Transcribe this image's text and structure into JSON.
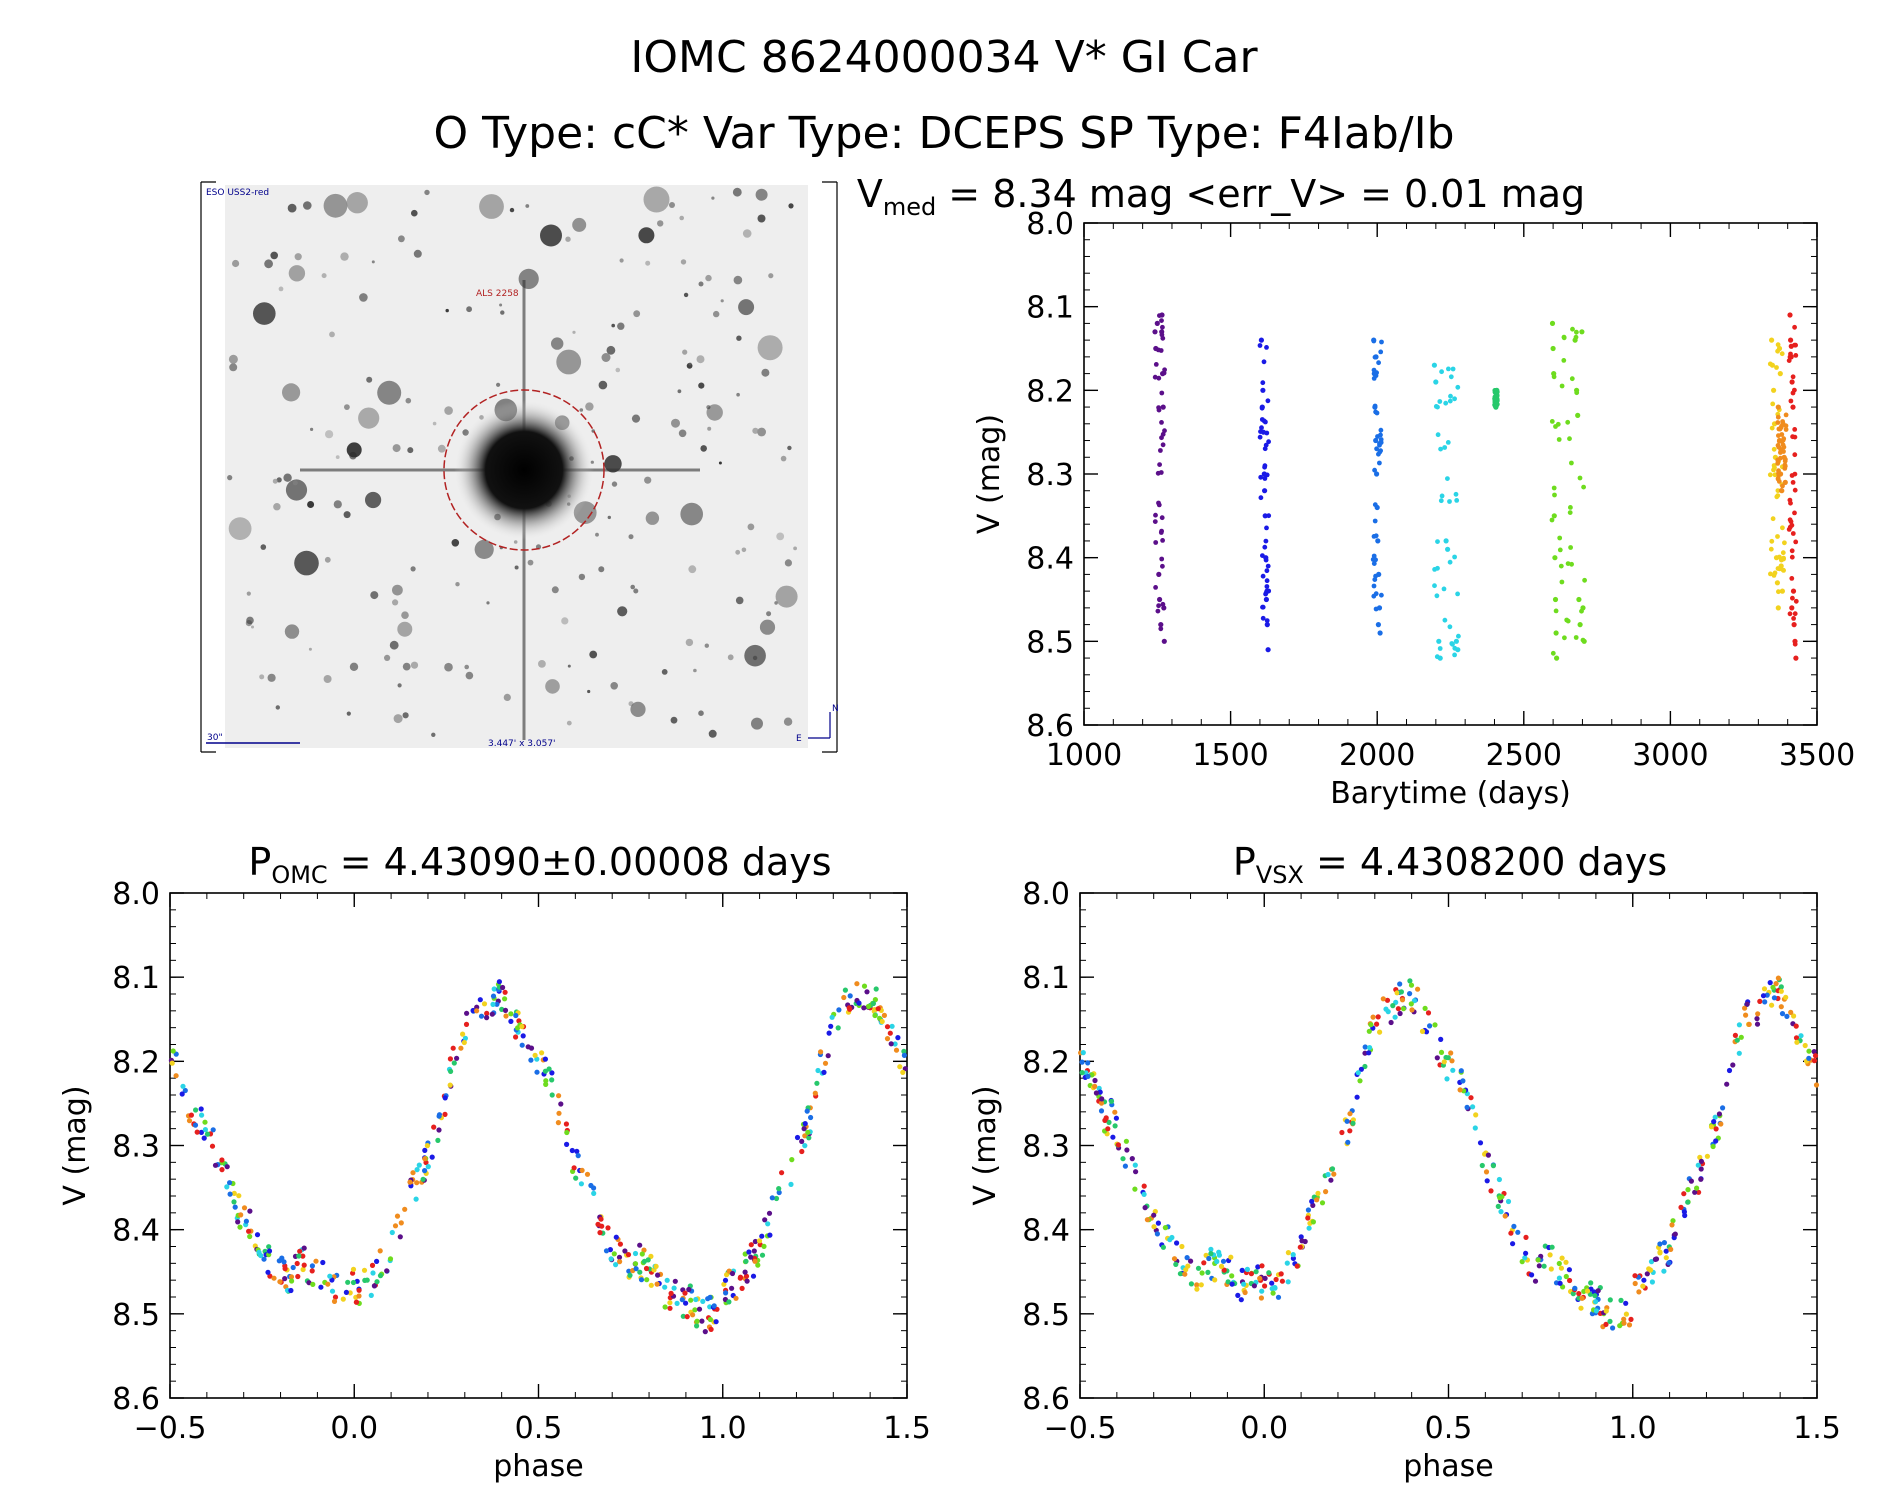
{
  "header": {
    "line1": "IOMC 8624000034   V* GI Car",
    "line2": "O Type: cC*  Var Type: DCEPS  SP Type: F4Iab/Ib"
  },
  "thumbnail": {
    "survey_label": "ESO USS2-red",
    "target_label": "ALS 2258",
    "scale_label": "30\"",
    "size_label": "3.447' x 3.057'",
    "north_label": "N",
    "east_label": "E"
  },
  "panels": {
    "lightcurve": {
      "title_prefix": "V",
      "title_sub": "med",
      "title_rest": " = 8.34 mag <err_V> = 0.01 mag"
    },
    "phase_omc": {
      "title_prefix": "P",
      "title_sub": "OMC",
      "title_rest": " = 4.43090±0.00008 days"
    },
    "phase_vsx": {
      "title_prefix": "P",
      "title_sub": "VSX",
      "title_rest": " = 4.4308200 days"
    }
  },
  "chart_data": [
    {
      "type": "scatter",
      "title": "Vmed = 8.34 mag <err_V> = 0.01 mag",
      "xlabel": "Barytime (days)",
      "ylabel": "V (mag)",
      "xlim": [
        1000,
        3500
      ],
      "ylim": [
        8.0,
        8.6
      ],
      "y_inverted": true,
      "xticks": [
        "1000",
        "1500",
        "2000",
        "2500",
        "3000",
        "3500"
      ],
      "yticks": [
        "8.0",
        "8.1",
        "8.2",
        "8.3",
        "8.4",
        "8.5",
        "8.6"
      ],
      "grid": false,
      "legend": "none",
      "groups": [
        {
          "color": "#5b0f8a",
          "x_range": [
            1240,
            1275
          ],
          "points": [
            [
              1242,
              8.13
            ],
            [
              1245,
              8.15
            ],
            [
              1250,
              8.12
            ],
            [
              1255,
              8.42
            ],
            [
              1258,
              8.45
            ],
            [
              1262,
              8.48
            ],
            [
              1265,
              8.13
            ],
            [
              1268,
              8.18
            ],
            [
              1270,
              8.22
            ],
            [
              1272,
              8.46
            ],
            [
              1274,
              8.5
            ],
            [
              1266,
              8.11
            ]
          ]
        },
        {
          "color": "#1a1ae6",
          "x_range": [
            1600,
            1630
          ],
          "points": [
            [
              1605,
              8.14
            ],
            [
              1610,
              8.2
            ],
            [
              1612,
              8.25
            ],
            [
              1615,
              8.3
            ],
            [
              1618,
              8.35
            ],
            [
              1620,
              8.4
            ],
            [
              1622,
              8.45
            ],
            [
              1625,
              8.48
            ],
            [
              1628,
              8.51
            ],
            [
              1608,
              8.22
            ],
            [
              1616,
              8.32
            ],
            [
              1624,
              8.44
            ]
          ]
        },
        {
          "color": "#1a6ee6",
          "x_range": [
            1985,
            2015
          ],
          "points": [
            [
              1988,
              8.14
            ],
            [
              1990,
              8.18
            ],
            [
              1992,
              8.22
            ],
            [
              1995,
              8.26
            ],
            [
              1998,
              8.3
            ],
            [
              2000,
              8.34
            ],
            [
              2002,
              8.38
            ],
            [
              2005,
              8.42
            ],
            [
              2008,
              8.46
            ],
            [
              2010,
              8.49
            ],
            [
              1996,
              8.16
            ],
            [
              2004,
              8.48
            ]
          ]
        },
        {
          "color": "#2ad4e6",
          "x_range": [
            2190,
            2280
          ],
          "points": [
            [
              2195,
              8.17
            ],
            [
              2200,
              8.19
            ],
            [
              2210,
              8.5
            ],
            [
              2215,
              8.52
            ],
            [
              2235,
              8.38
            ],
            [
              2240,
              8.39
            ],
            [
              2270,
              8.5
            ],
            [
              2275,
              8.51
            ]
          ]
        },
        {
          "color": "#27c86b",
          "x_range": [
            2400,
            2410
          ],
          "points": [
            [
              2402,
              8.21
            ],
            [
              2405,
              8.22
            ],
            [
              2408,
              8.2
            ]
          ]
        },
        {
          "color": "#6edc1e",
          "x_range": [
            2595,
            2710
          ],
          "points": [
            [
              2598,
              8.12
            ],
            [
              2600,
              8.15
            ],
            [
              2602,
              8.18
            ],
            [
              2604,
              8.35
            ],
            [
              2606,
              8.4
            ],
            [
              2608,
              8.45
            ],
            [
              2610,
              8.49
            ],
            [
              2612,
              8.52
            ],
            [
              2675,
              8.14
            ],
            [
              2680,
              8.2
            ],
            [
              2684,
              8.23
            ],
            [
              2688,
              8.45
            ],
            [
              2692,
              8.48
            ],
            [
              2698,
              8.13
            ],
            [
              2702,
              8.46
            ],
            [
              2706,
              8.5
            ]
          ]
        },
        {
          "color": "#f2d21e",
          "x_range": [
            3340,
            3390
          ],
          "points": [
            [
              3345,
              8.14
            ],
            [
              3348,
              8.17
            ],
            [
              3352,
              8.2
            ],
            [
              3355,
              8.24
            ],
            [
              3358,
              8.28
            ],
            [
              3362,
              8.4
            ],
            [
              3365,
              8.43
            ],
            [
              3368,
              8.46
            ],
            [
              3372,
              8.15
            ],
            [
              3375,
              8.18
            ],
            [
              3378,
              8.41
            ],
            [
              3382,
              8.44
            ]
          ]
        },
        {
          "color": "#f08c1e",
          "x_range": [
            3365,
            3395
          ],
          "points": [
            [
              3368,
              8.22
            ],
            [
              3372,
              8.26
            ],
            [
              3376,
              8.3
            ],
            [
              3380,
              8.32
            ],
            [
              3384,
              8.24
            ],
            [
              3388,
              8.28
            ],
            [
              3392,
              8.31
            ]
          ]
        },
        {
          "color": "#e6201e",
          "x_range": [
            3405,
            3430
          ],
          "points": [
            [
              3408,
              8.11
            ],
            [
              3410,
              8.14
            ],
            [
              3412,
              8.16
            ],
            [
              3415,
              8.19
            ],
            [
              3418,
              8.22
            ],
            [
              3420,
              8.44
            ],
            [
              3422,
              8.48
            ],
            [
              3425,
              8.5
            ],
            [
              3428,
              8.52
            ],
            [
              3414,
              8.46
            ]
          ]
        }
      ]
    },
    {
      "type": "scatter",
      "title": "POMC = 4.43090±0.00008 days",
      "xlabel": "phase",
      "ylabel": "V (mag)",
      "xlim": [
        -0.5,
        1.5
      ],
      "ylim": [
        8.0,
        8.6
      ],
      "y_inverted": true,
      "xticks": [
        "−0.5",
        "0.0",
        "0.5",
        "1.0",
        "1.5"
      ],
      "yticks": [
        "8.0",
        "8.1",
        "8.2",
        "8.3",
        "8.4",
        "8.5",
        "8.6"
      ],
      "grid": false,
      "legend": "none",
      "period_days": 4.4309,
      "phase_curve": [
        [
          0.0,
          8.485
        ],
        [
          0.05,
          8.47
        ],
        [
          0.1,
          8.42
        ],
        [
          0.15,
          8.36
        ],
        [
          0.2,
          8.3
        ],
        [
          0.25,
          8.24
        ],
        [
          0.3,
          8.17
        ],
        [
          0.35,
          8.13
        ],
        [
          0.4,
          8.12
        ],
        [
          0.45,
          8.15
        ],
        [
          0.5,
          8.2
        ],
        [
          0.55,
          8.26
        ],
        [
          0.6,
          8.32
        ],
        [
          0.65,
          8.37
        ],
        [
          0.7,
          8.41
        ],
        [
          0.75,
          8.44
        ],
        [
          0.8,
          8.46
        ],
        [
          0.85,
          8.475
        ],
        [
          0.9,
          8.485
        ],
        [
          0.95,
          8.49
        ],
        [
          1.0,
          8.485
        ]
      ],
      "colors": [
        "#5b0f8a",
        "#1a1ae6",
        "#1a6ee6",
        "#2ad4e6",
        "#27c86b",
        "#6edc1e",
        "#f2d21e",
        "#f08c1e",
        "#e6201e"
      ]
    },
    {
      "type": "scatter",
      "title": "PVSX = 4.4308200 days",
      "xlabel": "phase",
      "ylabel": "V (mag)",
      "xlim": [
        -0.5,
        1.5
      ],
      "ylim": [
        8.0,
        8.6
      ],
      "y_inverted": true,
      "xticks": [
        "−0.5",
        "0.0",
        "0.5",
        "1.0",
        "1.5"
      ],
      "yticks": [
        "8.0",
        "8.1",
        "8.2",
        "8.3",
        "8.4",
        "8.5",
        "8.6"
      ],
      "grid": false,
      "legend": "none",
      "period_days": 4.43082,
      "phase_curve": [
        [
          0.0,
          8.485
        ],
        [
          0.05,
          8.47
        ],
        [
          0.1,
          8.42
        ],
        [
          0.15,
          8.36
        ],
        [
          0.2,
          8.3
        ],
        [
          0.25,
          8.24
        ],
        [
          0.3,
          8.17
        ],
        [
          0.35,
          8.13
        ],
        [
          0.4,
          8.12
        ],
        [
          0.45,
          8.15
        ],
        [
          0.5,
          8.2
        ],
        [
          0.55,
          8.26
        ],
        [
          0.6,
          8.32
        ],
        [
          0.65,
          8.37
        ],
        [
          0.7,
          8.41
        ],
        [
          0.75,
          8.44
        ],
        [
          0.8,
          8.46
        ],
        [
          0.85,
          8.475
        ],
        [
          0.9,
          8.485
        ],
        [
          0.95,
          8.49
        ],
        [
          1.0,
          8.485
        ]
      ],
      "colors": [
        "#5b0f8a",
        "#1a1ae6",
        "#1a6ee6",
        "#2ad4e6",
        "#27c86b",
        "#6edc1e",
        "#f2d21e",
        "#f08c1e",
        "#e6201e"
      ]
    }
  ]
}
